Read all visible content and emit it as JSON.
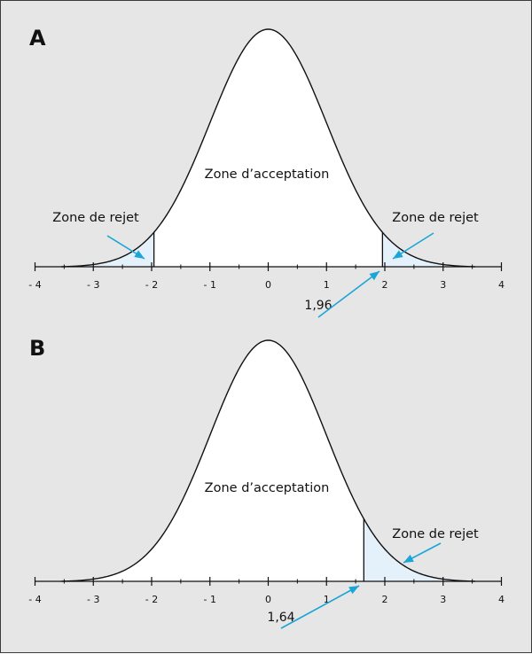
{
  "panels": [
    {
      "letter": "A",
      "acceptance_label": "Zone d’acceptation",
      "rejection_labels": [
        "Zone de rejet",
        "Zone de rejet"
      ],
      "rejection_regions": [
        [
          -4,
          -1.96
        ],
        [
          1.96,
          4
        ]
      ],
      "critical_value": 1.96,
      "critical_label": "1,96",
      "tick_labels": [
        "- 4",
        "- 3",
        "- 2",
        "- 1",
        "0",
        "1",
        "2",
        "3",
        "4"
      ]
    },
    {
      "letter": "B",
      "acceptance_label": "Zone d’acceptation",
      "rejection_labels": [
        "Zone de rejet"
      ],
      "rejection_regions": [
        [
          1.64,
          4
        ]
      ],
      "critical_value": 1.64,
      "critical_label": "1,64",
      "tick_labels": [
        "- 4",
        "- 3",
        "- 2",
        "- 1",
        "0",
        "1",
        "2",
        "3",
        "4"
      ]
    }
  ],
  "colors": {
    "background": "#e6e6e6",
    "curve_fill": "#ffffff",
    "rejection_fill": "#e4f0fa",
    "arrow": "#1aa6d6",
    "line": "#111111"
  }
}
